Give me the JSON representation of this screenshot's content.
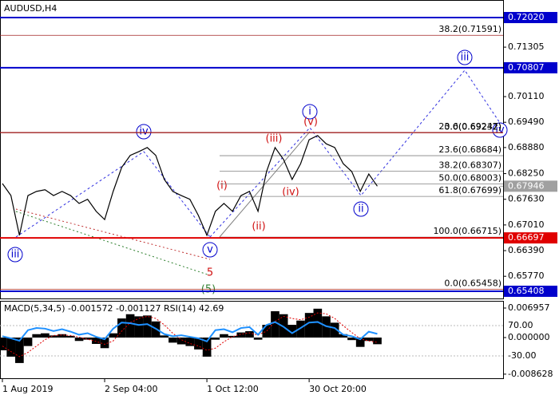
{
  "chart_data": [
    {
      "type": "line",
      "title": "AUDUSD,H4",
      "color": "#000000",
      "values": [
        0.6801,
        0.6772,
        0.6676,
        0.6772,
        0.6782,
        0.6786,
        0.6772,
        0.6782,
        0.6772,
        0.6753,
        0.6763,
        0.6734,
        0.6714,
        0.6782,
        0.684,
        0.6869,
        0.6878,
        0.6888,
        0.6869,
        0.6811,
        0.6782,
        0.6772,
        0.6763,
        0.6724,
        0.6676,
        0.6734,
        0.6753,
        0.6734,
        0.6772,
        0.6782,
        0.6734,
        0.683,
        0.6888,
        0.6859,
        0.6811,
        0.6849,
        0.6907,
        0.6917,
        0.6897,
        0.6888,
        0.6849,
        0.683,
        0.6782,
        0.6824,
        0.67946
      ],
      "ylim": [
        0.65215,
        0.72444
      ],
      "yticks": [
        0.71305,
        {
          "value": 0.7011,
          "label": "0.70110"
        },
        {
          "value": 0.6949,
          "label": "0.69490"
        },
        {
          "value": 0.6888,
          "label": "0.68880"
        },
        {
          "value": 0.6825,
          "label": "0.68250"
        },
        {
          "value": 0.6763,
          "label": "0.67630"
        },
        {
          "value": 0.6701,
          "label": "0.67010"
        },
        {
          "value": 0.6639,
          "label": "0.66390"
        },
        {
          "value": 0.6577,
          "label": "0.65770"
        }
      ],
      "levels": [
        {
          "value": 0.7202,
          "label": "0.72020",
          "color": "#0000cc"
        },
        {
          "value": 0.70807,
          "label": "0.70807",
          "color": "#0000cc"
        },
        {
          "value": 0.66697,
          "label": "0.66697",
          "color": "#e00000"
        },
        {
          "value": 0.65408,
          "label": "0.65408",
          "color": "#0000cc"
        },
        {
          "value": 0.67946,
          "label": "0.67946",
          "color": "#a0a0a0"
        }
      ],
      "fibs": [
        {
          "value": 0.71591,
          "label": "38.2(0.71591)",
          "color": "#a02020"
        },
        {
          "value": 0.69232,
          "label": "0.0(0.69232)",
          "color": "#a02020"
        },
        {
          "value": 0.69247,
          "label": "23.6(0.69247)",
          "color": "#a02020"
        },
        {
          "value": 0.68684,
          "label": "23.6(0.68684)",
          "color": "#808080"
        },
        {
          "value": 0.68307,
          "label": "38.2(0.68307)",
          "color": "#808080"
        },
        {
          "value": 0.68003,
          "label": "50.0(0.68003)",
          "color": "#808080"
        },
        {
          "value": 0.67699,
          "label": "61.8(0.67699)",
          "color": "#808080"
        },
        {
          "value": 0.66715,
          "label": "100.0(0.66715)",
          "color": "#808080"
        },
        {
          "value": 0.65458,
          "label": "0.0(0.65458)",
          "color": "#a02020"
        }
      ],
      "annotations": [
        "iii",
        "iv",
        "v",
        "i",
        "ii",
        "iii",
        "iv",
        "(i)",
        "(ii)",
        "(iii)",
        "(iv)",
        "(v)",
        "5",
        "(5)"
      ]
    },
    {
      "type": "macd",
      "title": "MACD(5,34,5) -0.001572 -0.001127 RSI(14) 42.69",
      "categories": [
        "1 Aug 2019",
        null,
        null,
        null,
        null,
        null,
        null,
        null,
        null,
        null,
        null,
        null,
        "2 Sep 04:00",
        null,
        null,
        null,
        null,
        null,
        null,
        null,
        null,
        null,
        null,
        null,
        "1 Oct 12:00",
        null,
        null,
        null,
        null,
        null,
        null,
        null,
        null,
        null,
        null,
        null,
        "30 Oct 20:00",
        null,
        null,
        null,
        null,
        null,
        null,
        null,
        null
      ],
      "series": [
        {
          "color": "#000000",
          "values": [
            -0.003,
            -0.0045,
            -0.006,
            -0.002,
            0.0008,
            0.001,
            0.0005,
            0.0008,
            0.0004,
            -0.0008,
            -0.0005,
            -0.0015,
            -0.0025,
            0.001,
            0.0045,
            0.0055,
            0.005,
            0.0052,
            0.0038,
            0.0005,
            -0.0012,
            -0.0016,
            -0.002,
            -0.0028,
            -0.0045,
            -0.0005,
            0.0008,
            0.0004,
            0.0012,
            0.0015,
            -0.0005,
            0.003,
            0.0062,
            0.0055,
            0.003,
            0.004,
            0.0058,
            0.0068,
            0.005,
            0.0035,
            0.0008,
            -0.0006,
            -0.0022,
            -0.0008,
            -0.001572
          ]
        },
        {
          "color": "#e00000",
          "values": [
            -0.002,
            -0.0033,
            -0.0045,
            -0.0035,
            -0.002,
            -0.0005,
            0.0005,
            0.0006,
            0.0005,
            0.0001,
            -0.0004,
            -0.0009,
            -0.0016,
            -0.0008,
            0.0015,
            0.0035,
            0.0045,
            0.005,
            0.0045,
            0.003,
            0.001,
            -0.0005,
            -0.0014,
            -0.002,
            -0.003,
            -0.0025,
            -0.001,
            0.0002,
            0.0008,
            0.0011,
            0.0006,
            0.0015,
            0.0038,
            0.005,
            0.0045,
            0.0042,
            0.0048,
            0.0058,
            0.0056,
            0.0045,
            0.0028,
            0.0012,
            -0.0003,
            -0.0008,
            -0.001127
          ]
        },
        {
          "color": "#1e90ff",
          "axis": "y2",
          "values": [
            35,
            28,
            20,
            55,
            62,
            60,
            52,
            58,
            50,
            40,
            45,
            33,
            25,
            60,
            80,
            78,
            72,
            75,
            60,
            42,
            35,
            38,
            33,
            28,
            18,
            55,
            58,
            48,
            62,
            65,
            40,
            72,
            82,
            66,
            45,
            62,
            80,
            82,
            68,
            62,
            40,
            35,
            25,
            50,
            42.69
          ]
        }
      ],
      "ylim": [
        -0.00978,
        0.00865
      ],
      "yticks": [
        0.006957,
        {
          "value": 0,
          "label": "0.000000"
        },
        -0.008628
      ],
      "y2lim": [
        -106.3,
        151.6
      ],
      "y2ticks": [
        {
          "value": 70,
          "label": "70.00"
        },
        {
          "value": -30,
          "label": "-30.00"
        }
      ]
    }
  ]
}
